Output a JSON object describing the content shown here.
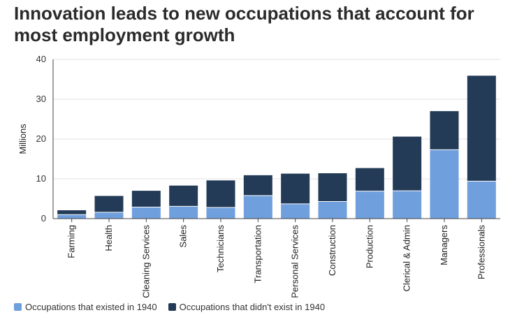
{
  "title": "Innovation leads to new occupations that account for most employment growth",
  "colors": {
    "existed": "#6f9fdc",
    "new": "#233b57",
    "grid": "#e2e2e2",
    "axis": "#444444"
  },
  "legend": {
    "existed": "Occupations that existed in 1940",
    "new": "Occupations that didn't exist in 1940"
  },
  "chart_data": {
    "type": "bar",
    "stacked": true,
    "ylabel": "Millions",
    "xlabel": "",
    "ylim": [
      0,
      40
    ],
    "yticks": [
      0,
      10,
      20,
      30,
      40
    ],
    "grid": true,
    "legend_position": "bottom-left",
    "categories": [
      "Farming",
      "Health",
      "Cleaning Services",
      "Sales",
      "Technicians",
      "Transportation",
      "Personal Services",
      "Construction",
      "Production",
      "Clerical & Admin",
      "Managers",
      "Professionals"
    ],
    "series": [
      {
        "name": "Occupations that existed in 1940",
        "key": "existed",
        "values": [
          1.0,
          1.6,
          2.9,
          3.1,
          2.8,
          5.8,
          3.7,
          4.3,
          6.9,
          7.0,
          17.3,
          9.4
        ]
      },
      {
        "name": "Occupations that didn't exist in 1940",
        "key": "new",
        "values": [
          1.1,
          4.1,
          4.1,
          5.2,
          6.8,
          5.1,
          7.6,
          7.1,
          5.8,
          13.6,
          9.7,
          26.5
        ]
      }
    ]
  }
}
